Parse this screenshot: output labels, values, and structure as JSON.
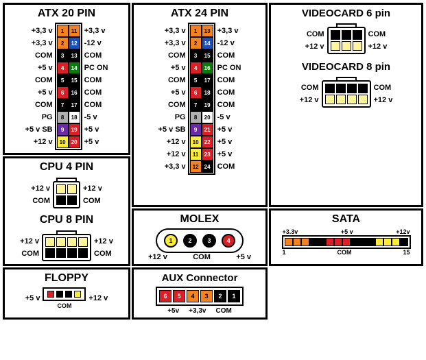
{
  "colors": {
    "orange": "#f58220",
    "blue": "#1a4fb8",
    "black": "#000000",
    "red": "#d92027",
    "darkred": "#8b0000",
    "green": "#0a7a0a",
    "white": "#ffffff",
    "gray": "#b0b0b0",
    "purple": "#6a2aa5",
    "yellow": "#ffeb3b",
    "lightyellow": "#fff59d"
  },
  "atx20": {
    "title": "ATX 20 PIN",
    "rows": [
      {
        "l": "+3,3 v",
        "p1": {
          "n": "1",
          "c": "orange"
        },
        "p2": {
          "n": "11",
          "c": "orange"
        },
        "r": "+3,3 v"
      },
      {
        "l": "+3,3 v",
        "p1": {
          "n": "2",
          "c": "orange"
        },
        "p2": {
          "n": "12",
          "c": "blue"
        },
        "r": "-12 v"
      },
      {
        "l": "COM",
        "p1": {
          "n": "3",
          "c": "black"
        },
        "p2": {
          "n": "13",
          "c": "black"
        },
        "r": "COM"
      },
      {
        "l": "+5 v",
        "p1": {
          "n": "4",
          "c": "red"
        },
        "p2": {
          "n": "14",
          "c": "green"
        },
        "r": "PC ON"
      },
      {
        "l": "COM",
        "p1": {
          "n": "5",
          "c": "black"
        },
        "p2": {
          "n": "15",
          "c": "black"
        },
        "r": "COM"
      },
      {
        "l": "+5 v",
        "p1": {
          "n": "6",
          "c": "red"
        },
        "p2": {
          "n": "16",
          "c": "black"
        },
        "r": "COM"
      },
      {
        "l": "COM",
        "p1": {
          "n": "7",
          "c": "black"
        },
        "p2": {
          "n": "17",
          "c": "black"
        },
        "r": "COM"
      },
      {
        "l": "PG",
        "p1": {
          "n": "8",
          "c": "gray"
        },
        "p2": {
          "n": "18",
          "c": "white"
        },
        "r": "-5 v"
      },
      {
        "l": "+5 v SB",
        "p1": {
          "n": "9",
          "c": "purple"
        },
        "p2": {
          "n": "19",
          "c": "red"
        },
        "r": "+5 v"
      },
      {
        "l": "+12 v",
        "p1": {
          "n": "10",
          "c": "yellow"
        },
        "p2": {
          "n": "20",
          "c": "red"
        },
        "r": "+5 v"
      }
    ]
  },
  "atx24": {
    "title": "ATX 24 PIN",
    "rows": [
      {
        "l": "+3,3 v",
        "p1": {
          "n": "1",
          "c": "orange"
        },
        "p2": {
          "n": "13",
          "c": "orange"
        },
        "r": "+3,3 v"
      },
      {
        "l": "+3,3 v",
        "p1": {
          "n": "2",
          "c": "orange"
        },
        "p2": {
          "n": "14",
          "c": "blue"
        },
        "r": "-12 v"
      },
      {
        "l": "COM",
        "p1": {
          "n": "3",
          "c": "black"
        },
        "p2": {
          "n": "15",
          "c": "black"
        },
        "r": "COM"
      },
      {
        "l": "+5 v",
        "p1": {
          "n": "4",
          "c": "red"
        },
        "p2": {
          "n": "16",
          "c": "green"
        },
        "r": "PC ON"
      },
      {
        "l": "COM",
        "p1": {
          "n": "5",
          "c": "black"
        },
        "p2": {
          "n": "17",
          "c": "black"
        },
        "r": "COM"
      },
      {
        "l": "+5 v",
        "p1": {
          "n": "6",
          "c": "red"
        },
        "p2": {
          "n": "18",
          "c": "black"
        },
        "r": "COM"
      },
      {
        "l": "COM",
        "p1": {
          "n": "7",
          "c": "black"
        },
        "p2": {
          "n": "19",
          "c": "black"
        },
        "r": "COM"
      },
      {
        "l": "PG",
        "p1": {
          "n": "8",
          "c": "gray"
        },
        "p2": {
          "n": "20",
          "c": "white"
        },
        "r": "-5 v"
      },
      {
        "l": "+5 v SB",
        "p1": {
          "n": "9",
          "c": "purple"
        },
        "p2": {
          "n": "21",
          "c": "red"
        },
        "r": "+5 v"
      },
      {
        "l": "+12 v",
        "p1": {
          "n": "10",
          "c": "yellow"
        },
        "p2": {
          "n": "22",
          "c": "red"
        },
        "r": "+5 v"
      },
      {
        "l": "+12 v",
        "p1": {
          "n": "11",
          "c": "yellow"
        },
        "p2": {
          "n": "23",
          "c": "red"
        },
        "r": "+5 v"
      },
      {
        "l": "+3,3 v",
        "p1": {
          "n": "12",
          "c": "orange"
        },
        "p2": {
          "n": "24",
          "c": "black"
        },
        "r": "COM"
      }
    ]
  },
  "cpu4": {
    "title": "CPU 4 PIN",
    "left": [
      "+12 v",
      "COM"
    ],
    "right": [
      "+12 v",
      "COM"
    ],
    "grid": [
      [
        "lightyellow",
        "lightyellow"
      ],
      [
        "black",
        "black"
      ]
    ]
  },
  "cpu8": {
    "title": "CPU 8 PIN",
    "left": [
      "+12 v",
      "COM"
    ],
    "right": [
      "+12 v",
      "COM"
    ],
    "grid": [
      [
        "lightyellow",
        "lightyellow",
        "lightyellow",
        "lightyellow"
      ],
      [
        "black",
        "black",
        "black",
        "black"
      ]
    ]
  },
  "pcie6": {
    "title": "VIDEOCARD 6 pin",
    "left": [
      "COM",
      "+12 v"
    ],
    "right": [
      "COM",
      "+12 v"
    ],
    "grid": [
      [
        "black",
        "black",
        "black"
      ],
      [
        "lightyellow",
        "lightyellow",
        "lightyellow"
      ]
    ]
  },
  "pcie8": {
    "title": "VIDEOCARD 8 pin",
    "left": [
      "COM",
      "+12 v"
    ],
    "right": [
      "COM",
      "+12 v"
    ],
    "grid": [
      [
        "black",
        "black",
        "black",
        "black"
      ],
      [
        "lightyellow",
        "lightyellow",
        "lightyellow",
        "lightyellow"
      ]
    ]
  },
  "molex": {
    "title": "MOLEX",
    "pins": [
      {
        "n": "1",
        "c": "yellow"
      },
      {
        "n": "2",
        "c": "black"
      },
      {
        "n": "3",
        "c": "black"
      },
      {
        "n": "4",
        "c": "red"
      }
    ],
    "left": "+12 v",
    "right": "+5 v",
    "com": "COM"
  },
  "floppy": {
    "title": "FLOPPY",
    "pins": [
      "red",
      "black",
      "black",
      "yellow"
    ],
    "left": "+5 v",
    "right": "+12 v",
    "com": "COM"
  },
  "sata": {
    "title": "SATA",
    "top": [
      "+3.3v",
      "+5 v",
      "+12v"
    ],
    "colors": [
      "orange",
      "orange",
      "orange",
      "black",
      "black",
      "red",
      "red",
      "red",
      "black",
      "black",
      "black",
      "yellow",
      "yellow",
      "yellow",
      "black"
    ],
    "bot_left": "1",
    "bot_mid": "COM",
    "bot_right": "15"
  },
  "aux": {
    "title": "AUX Connector",
    "nums": [
      "6",
      "5",
      "4",
      "3",
      "2",
      "1"
    ],
    "colors": [
      "red",
      "red",
      "orange",
      "orange",
      "black",
      "black"
    ],
    "labels": [
      "+5v",
      "+3,3v",
      "COM"
    ]
  }
}
